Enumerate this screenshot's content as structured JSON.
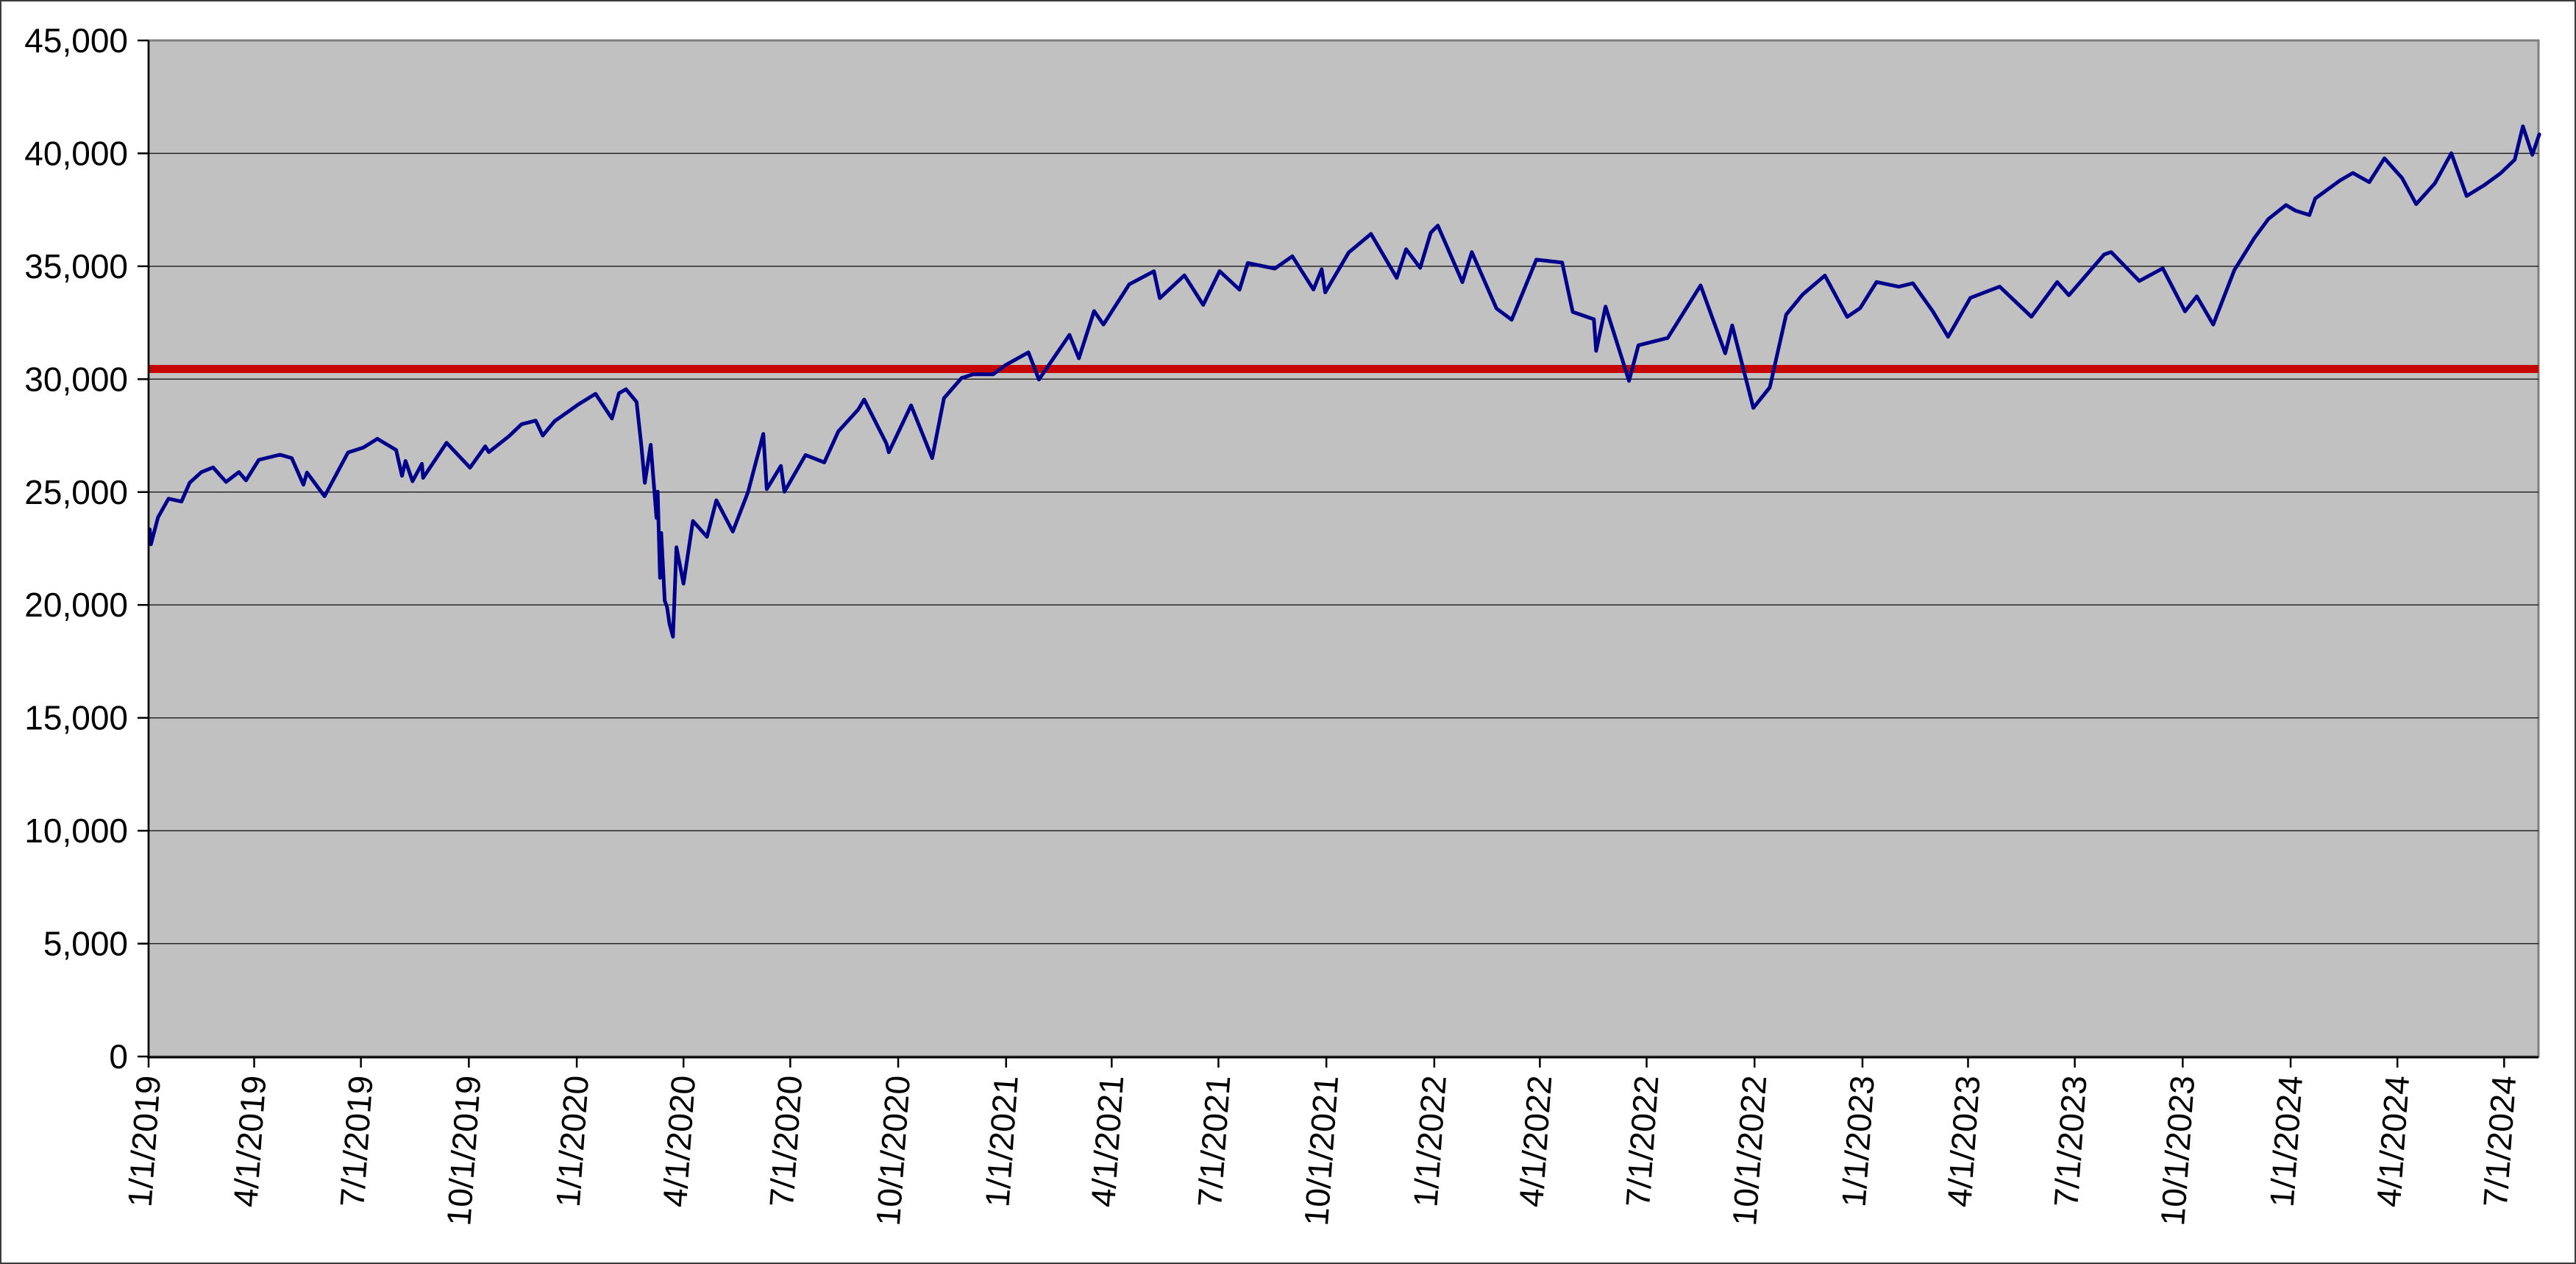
{
  "chart_data": {
    "type": "line",
    "grid": true,
    "legend": false,
    "plot_bg": "#c1c1c1",
    "plot_border_color": "#7f7f7f",
    "axis_color": "#000000",
    "gridline_color": "#1a1a1a",
    "ylim": [
      0,
      45000
    ],
    "y_tick_step": 5000,
    "y_tick_labels": [
      "0",
      "5,000",
      "10,000",
      "15,000",
      "20,000",
      "25,000",
      "30,000",
      "35,000",
      "40,000",
      "45,000"
    ],
    "x_range": [
      "1/1/2019",
      "7/30/2024"
    ],
    "x_tick_labels": [
      "1/1/2019",
      "4/1/2019",
      "7/1/2019",
      "10/1/2019",
      "1/1/2020",
      "4/1/2020",
      "7/1/2020",
      "10/1/2020",
      "1/1/2021",
      "4/1/2021",
      "7/1/2021",
      "10/1/2021",
      "1/1/2022",
      "4/1/2022",
      "7/1/2022",
      "10/1/2022",
      "1/1/2023",
      "4/1/2023",
      "7/1/2023",
      "10/1/2023",
      "1/1/2024",
      "4/1/2024",
      "7/1/2024"
    ],
    "reference_line": {
      "value": 30450,
      "color": "#c60505",
      "width": 11
    },
    "series": [
      {
        "color": "#00008b",
        "width": 5,
        "points": [
          [
            "1/2/2019",
            23346
          ],
          [
            "1/3/2019",
            22686
          ],
          [
            "1/9/2019",
            23879
          ],
          [
            "1/18/2019",
            24706
          ],
          [
            "1/29/2019",
            24580
          ],
          [
            "2/5/2019",
            25411
          ],
          [
            "2/15/2019",
            25883
          ],
          [
            "2/25/2019",
            26092
          ],
          [
            "3/8/2019",
            25450
          ],
          [
            "3/19/2019",
            25887
          ],
          [
            "3/25/2019",
            25517
          ],
          [
            "4/5/2019",
            26425
          ],
          [
            "4/23/2019",
            26656
          ],
          [
            "5/3/2019",
            26505
          ],
          [
            "5/13/2019",
            25325
          ],
          [
            "5/16/2019",
            25863
          ],
          [
            "5/31/2019",
            24815
          ],
          [
            "6/20/2019",
            26753
          ],
          [
            "7/3/2019",
            26966
          ],
          [
            "7/15/2019",
            27359
          ],
          [
            "7/31/2019",
            26864
          ],
          [
            "8/5/2019",
            25718
          ],
          [
            "8/8/2019",
            26378
          ],
          [
            "8/14/2019",
            25479
          ],
          [
            "8/22/2019",
            26252
          ],
          [
            "8/23/2019",
            25629
          ],
          [
            "9/12/2019",
            27182
          ],
          [
            "10/2/2019",
            26078
          ],
          [
            "10/15/2019",
            27025
          ],
          [
            "10/18/2019",
            26770
          ],
          [
            "11/4/2019",
            27462
          ],
          [
            "11/15/2019",
            28005
          ],
          [
            "11/27/2019",
            28164
          ],
          [
            "12/3/2019",
            27503
          ],
          [
            "12/13/2019",
            28135
          ],
          [
            "12/27/2019",
            28645
          ],
          [
            "1/2/2020",
            28869
          ],
          [
            "1/17/2020",
            29348
          ],
          [
            "1/31/2020",
            28256
          ],
          [
            "2/6/2020",
            29380
          ],
          [
            "2/12/2020",
            29551
          ],
          [
            "2/21/2020",
            28992
          ],
          [
            "2/25/2020",
            27081
          ],
          [
            "2/28/2020",
            25409
          ],
          [
            "3/4/2020",
            27091
          ],
          [
            "3/9/2020",
            23851
          ],
          [
            "3/10/2020",
            25018
          ],
          [
            "3/12/2020",
            21200
          ],
          [
            "3/13/2020",
            23186
          ],
          [
            "3/16/2020",
            20188
          ],
          [
            "3/18/2020",
            19899
          ],
          [
            "3/20/2020",
            19174
          ],
          [
            "3/23/2020",
            18592
          ],
          [
            "3/26/2020",
            22552
          ],
          [
            "4/1/2020",
            20944
          ],
          [
            "4/9/2020",
            23719
          ],
          [
            "4/21/2020",
            23019
          ],
          [
            "4/29/2020",
            24634
          ],
          [
            "5/13/2020",
            23248
          ],
          [
            "5/26/2020",
            24995
          ],
          [
            "6/8/2020",
            27572
          ],
          [
            "6/11/2020",
            25128
          ],
          [
            "6/23/2020",
            26156
          ],
          [
            "6/26/2020",
            25016
          ],
          [
            "7/14/2020",
            26643
          ],
          [
            "7/30/2020",
            26313
          ],
          [
            "8/11/2020",
            27687
          ],
          [
            "8/28/2020",
            28654
          ],
          [
            "9/2/2020",
            29100
          ],
          [
            "9/21/2020",
            27148
          ],
          [
            "9/23/2020",
            26763
          ],
          [
            "10/12/2020",
            28838
          ],
          [
            "10/30/2020",
            26502
          ],
          [
            "11/9/2020",
            29158
          ],
          [
            "11/24/2020",
            30046
          ],
          [
            "12/4/2020",
            30218
          ],
          [
            "12/21/2020",
            30216
          ],
          [
            "12/31/2020",
            30606
          ],
          [
            "1/20/2021",
            31188
          ],
          [
            "1/29/2021",
            29983
          ],
          [
            "2/24/2021",
            31962
          ],
          [
            "3/4/2021",
            30924
          ],
          [
            "3/17/2021",
            33015
          ],
          [
            "3/25/2021",
            32420
          ],
          [
            "4/16/2021",
            34201
          ],
          [
            "5/7/2021",
            34778
          ],
          [
            "5/12/2021",
            33587
          ],
          [
            "6/2/2021",
            34600
          ],
          [
            "6/18/2021",
            33290
          ],
          [
            "7/2/2021",
            34786
          ],
          [
            "7/19/2021",
            33962
          ],
          [
            "7/26/2021",
            35144
          ],
          [
            "8/18/2021",
            34894
          ],
          [
            "9/2/2021",
            35444
          ],
          [
            "9/20/2021",
            33970
          ],
          [
            "9/27/2021",
            34869
          ],
          [
            "9/30/2021",
            33844
          ],
          [
            "10/20/2021",
            35609
          ],
          [
            "11/8/2021",
            36432
          ],
          [
            "11/30/2021",
            34484
          ],
          [
            "12/8/2021",
            35755
          ],
          [
            "12/20/2021",
            34932
          ],
          [
            "12/29/2021",
            36489
          ],
          [
            "1/4/2022",
            36800
          ],
          [
            "1/25/2022",
            34297
          ],
          [
            "2/2/2022",
            35629
          ],
          [
            "2/23/2022",
            33132
          ],
          [
            "3/8/2022",
            32632
          ],
          [
            "3/29/2022",
            35294
          ],
          [
            "4/20/2022",
            35161
          ],
          [
            "4/29/2022",
            32977
          ],
          [
            "5/17/2022",
            32655
          ],
          [
            "5/19/2022",
            31253
          ],
          [
            "5/27/2022",
            33213
          ],
          [
            "6/16/2022",
            29927
          ],
          [
            "6/24/2022",
            31501
          ],
          [
            "7/19/2022",
            31827
          ],
          [
            "8/16/2022",
            34152
          ],
          [
            "9/6/2022",
            31145
          ],
          [
            "9/12/2022",
            32381
          ],
          [
            "9/30/2022",
            28726
          ],
          [
            "10/14/2022",
            29635
          ],
          [
            "10/28/2022",
            32862
          ],
          [
            "11/11/2022",
            33748
          ],
          [
            "11/30/2022",
            34590
          ],
          [
            "12/19/2022",
            32758
          ],
          [
            "12/30/2022",
            33147
          ],
          [
            "1/13/2023",
            34303
          ],
          [
            "2/1/2023",
            34093
          ],
          [
            "2/13/2023",
            34246
          ],
          [
            "3/2/2023",
            33003
          ],
          [
            "3/15/2023",
            31875
          ],
          [
            "4/3/2023",
            33601
          ],
          [
            "4/28/2023",
            34098
          ],
          [
            "5/25/2023",
            32765
          ],
          [
            "6/16/2023",
            34299
          ],
          [
            "6/26/2023",
            33715
          ],
          [
            "7/26/2023",
            35520
          ],
          [
            "8/1/2023",
            35630
          ],
          [
            "8/25/2023",
            34347
          ],
          [
            "9/14/2023",
            34907
          ],
          [
            "10/3/2023",
            33002
          ],
          [
            "10/13/2023",
            33670
          ],
          [
            "10/27/2023",
            32418
          ],
          [
            "11/14/2023",
            34828
          ],
          [
            "12/1/2023",
            36246
          ],
          [
            "12/13/2023",
            37090
          ],
          [
            "12/28/2023",
            37710
          ],
          [
            "1/5/2024",
            37466
          ],
          [
            "1/17/2024",
            37267
          ],
          [
            "1/22/2024",
            38002
          ],
          [
            "2/12/2024",
            38797
          ],
          [
            "2/23/2024",
            39131
          ],
          [
            "3/8/2024",
            38723
          ],
          [
            "3/21/2024",
            39781
          ],
          [
            "4/5/2024",
            38904
          ],
          [
            "4/17/2024",
            37753
          ],
          [
            "5/3/2024",
            38676
          ],
          [
            "5/17/2024",
            40004
          ],
          [
            "5/30/2024",
            38111
          ],
          [
            "6/14/2024",
            38589
          ],
          [
            "6/28/2024",
            39119
          ],
          [
            "7/10/2024",
            39722
          ],
          [
            "7/17/2024",
            41198
          ],
          [
            "7/25/2024",
            39935
          ],
          [
            "7/31/2024",
            40843
          ]
        ]
      }
    ]
  }
}
